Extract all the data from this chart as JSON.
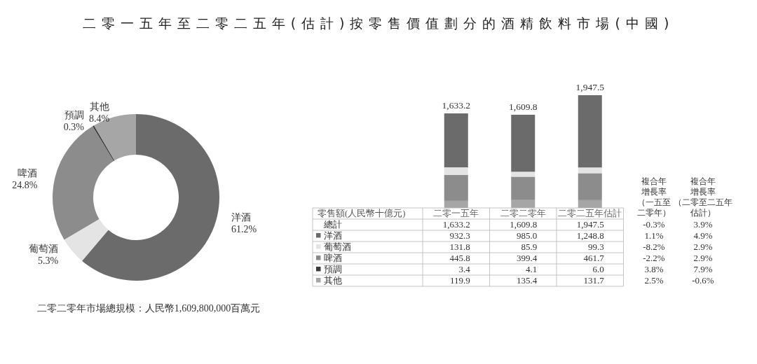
{
  "chart_data": [
    {
      "type": "donut",
      "title": "二零一五年至二零二五年(估計)按零售價值劃分的酒精飲料市場(中國)",
      "categories": [
        "洋酒",
        "葡萄酒",
        "啤酒",
        "預調",
        "其他"
      ],
      "values": [
        61.2,
        5.3,
        24.8,
        0.3,
        8.4
      ],
      "colors": [
        "#6b6b6b",
        "#e4e4e4",
        "#8c8c8c",
        "#3a3a3a",
        "#a6a6a6"
      ],
      "value_labels": [
        "61.2%",
        "5.3%",
        "24.8%",
        "0.3%",
        "8.4%"
      ],
      "annotations": [
        "二零二零年市場總規模：人民幣1,609,800,000百萬元"
      ]
    },
    {
      "type": "bar",
      "stacked": true,
      "ylabel": "零售額(人民幣十億元)",
      "categories": [
        "二零一五年",
        "二零二零年",
        "二零二五年估計"
      ],
      "tick_labels": "x",
      "legend": "bottom",
      "series": [
        {
          "name": "其他",
          "color": "#a6a6a6",
          "values": [
            119.9,
            135.4,
            131.7
          ],
          "value_labels": [
            "119.9",
            "135.4",
            "131.7"
          ]
        },
        {
          "name": "預調",
          "color": "#3a3a3a",
          "values": [
            3.4,
            4.1,
            6.0
          ],
          "value_labels": [
            "3.4",
            "4.1",
            "6.0"
          ]
        },
        {
          "name": "啤酒",
          "color": "#8c8c8c",
          "values": [
            445.8,
            399.4,
            461.7
          ],
          "value_labels": [
            "445.8",
            "399.4",
            "461.7"
          ]
        },
        {
          "name": "葡萄酒",
          "color": "#e4e4e4",
          "values": [
            131.8,
            85.9,
            99.3
          ],
          "value_labels": [
            "131.8",
            "85.9",
            "99.3"
          ]
        },
        {
          "name": "洋酒",
          "color": "#6b6b6b",
          "values": [
            932.3,
            985.0,
            1248.8
          ],
          "value_labels": [
            "932.3",
            "985.0",
            "1,248.8"
          ]
        }
      ],
      "totals": [
        "1,633.2",
        "1,609.8",
        "1,947.5"
      ],
      "annotations": [
        "總計",
        "複合年增長率（一五至二零年）",
        "複合年增長率（二零至二五年估計）",
        "-0.3%",
        "3.9%",
        "1.1%",
        "4.9%",
        "-8.2%",
        "2.9%",
        "-2.2%",
        "2.9%",
        "3.8%",
        "7.9%",
        "2.5%",
        "-0.6%"
      ]
    }
  ]
}
